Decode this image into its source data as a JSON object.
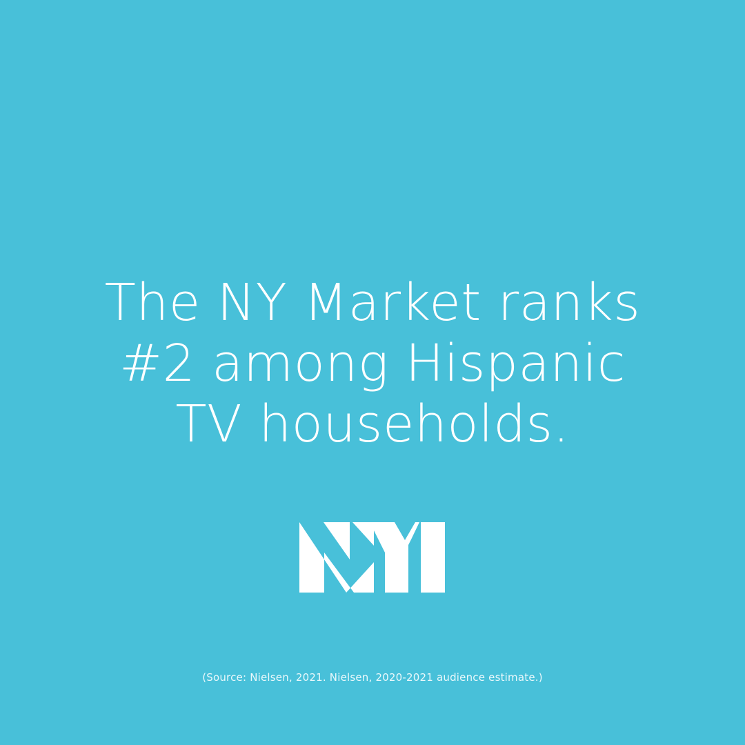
{
  "card": {
    "background_color": "#48C0D9",
    "text_color": "#FFFFFF"
  },
  "headline": {
    "lines": [
      "The NY Market ranks",
      "#2 among Hispanic",
      "TV households."
    ]
  },
  "logo": {
    "text": "NYI",
    "icon": "nyi-logo-icon"
  },
  "footer": {
    "source": "(Source: Nielsen, 2021. Nielsen, 2020-2021 audience estimate.)"
  }
}
